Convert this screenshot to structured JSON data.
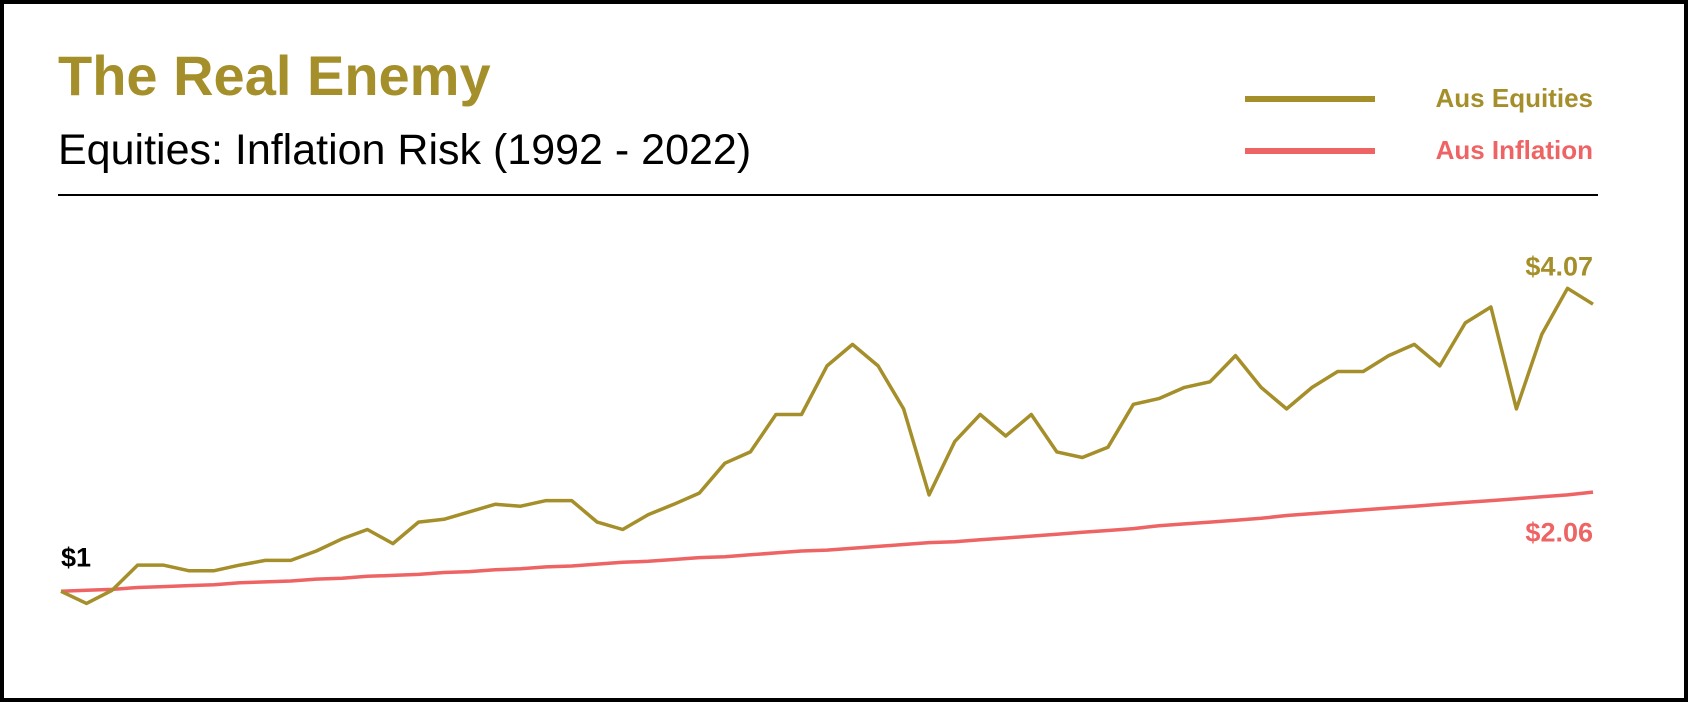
{
  "chart_data": {
    "type": "line",
    "title": "The Real Enemy",
    "subtitle": "Equities: Inflation Risk (1992 - 2022)",
    "legend": "top-right",
    "ylim": [
      0.5,
      4.5
    ],
    "start_label": {
      "value": 1,
      "label": "$1"
    },
    "series": [
      {
        "name": "Aus Equities",
        "color": "#a58f2a",
        "values": [
          1.0,
          0.87,
          1.01,
          1.28,
          1.28,
          1.22,
          1.22,
          1.28,
          1.33,
          1.33,
          1.43,
          1.56,
          1.66,
          1.51,
          1.74,
          1.77,
          1.85,
          1.93,
          1.91,
          1.97,
          1.97,
          1.74,
          1.66,
          1.82,
          1.93,
          2.05,
          2.37,
          2.49,
          2.89,
          2.89,
          3.41,
          3.64,
          3.41,
          2.95,
          2.03,
          2.6,
          2.89,
          2.66,
          2.89,
          2.49,
          2.43,
          2.54,
          3.0,
          3.06,
          3.18,
          3.24,
          3.52,
          3.18,
          2.95,
          3.18,
          3.35,
          3.35,
          3.52,
          3.64,
          3.41,
          3.87,
          4.04,
          2.95,
          3.75,
          4.24,
          4.07
        ],
        "end_label": {
          "value": 4.07,
          "label": "$4.07"
        }
      },
      {
        "name": "Aus Inflation",
        "color": "#ee6464",
        "values": [
          1.0,
          1.01,
          1.02,
          1.04,
          1.05,
          1.06,
          1.07,
          1.09,
          1.1,
          1.11,
          1.13,
          1.14,
          1.16,
          1.17,
          1.18,
          1.2,
          1.21,
          1.23,
          1.24,
          1.26,
          1.27,
          1.29,
          1.31,
          1.32,
          1.34,
          1.36,
          1.37,
          1.39,
          1.41,
          1.43,
          1.44,
          1.46,
          1.48,
          1.5,
          1.52,
          1.53,
          1.55,
          1.57,
          1.59,
          1.61,
          1.63,
          1.65,
          1.67,
          1.7,
          1.72,
          1.74,
          1.76,
          1.78,
          1.81,
          1.83,
          1.85,
          1.87,
          1.89,
          1.91,
          1.93,
          1.95,
          1.97,
          1.99,
          2.01,
          2.03,
          2.06
        ],
        "end_label": {
          "value": 2.06,
          "label": "$2.06"
        }
      }
    ]
  }
}
